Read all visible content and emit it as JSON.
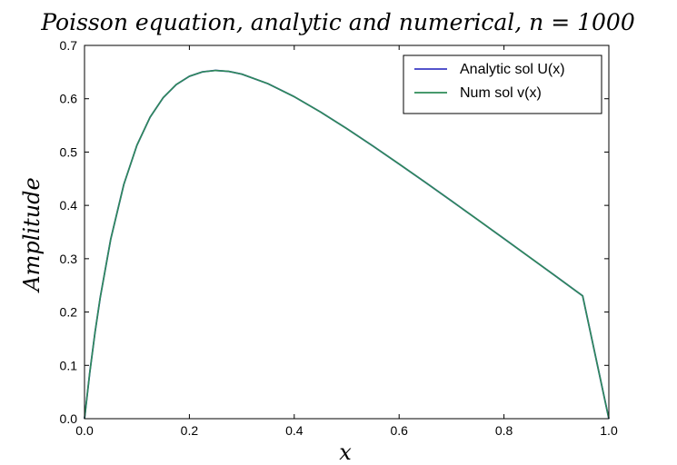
{
  "chart_data": {
    "type": "line",
    "title": "Poisson equation, analytic and numerical,  n = 1000",
    "xlabel": "x",
    "ylabel": "Amplitude",
    "xlim": [
      0.0,
      1.0
    ],
    "ylim": [
      0.0,
      0.7
    ],
    "xticks": [
      "0.0",
      "0.2",
      "0.4",
      "0.6",
      "0.8",
      "1.0"
    ],
    "yticks": [
      "0.0",
      "0.1",
      "0.2",
      "0.3",
      "0.4",
      "0.5",
      "0.6",
      "0.7"
    ],
    "grid": false,
    "legend_position": "top-right",
    "x": [
      0.0,
      0.01,
      0.02,
      0.03,
      0.05,
      0.075,
      0.1,
      0.125,
      0.15,
      0.175,
      0.2,
      0.225,
      0.25,
      0.275,
      0.3,
      0.35,
      0.4,
      0.45,
      0.5,
      0.55,
      0.6,
      0.65,
      0.7,
      0.75,
      0.8,
      0.85,
      0.9,
      0.95,
      1.0
    ],
    "series": [
      {
        "name": "Analytic sol U(x)",
        "color": "#3b3bc4",
        "values": [
          0.0,
          0.0862,
          0.1616,
          0.2274,
          0.3367,
          0.4394,
          0.5129,
          0.5653,
          0.6019,
          0.6266,
          0.6421,
          0.6504,
          0.6531,
          0.6513,
          0.6461,
          0.6282,
          0.6038,
          0.5752,
          0.5441,
          0.5114,
          0.4776,
          0.4432,
          0.4083,
          0.3731,
          0.3376,
          0.302,
          0.2663,
          0.2304,
          0.0
        ]
      },
      {
        "name": "Num sol v(x)",
        "color": "#2e8b57",
        "values": [
          0.0,
          0.0862,
          0.1616,
          0.2274,
          0.3367,
          0.4394,
          0.5129,
          0.5653,
          0.6019,
          0.6266,
          0.6421,
          0.6504,
          0.6531,
          0.6513,
          0.6461,
          0.6282,
          0.6038,
          0.5752,
          0.5441,
          0.5114,
          0.4776,
          0.4432,
          0.4083,
          0.3731,
          0.3376,
          0.302,
          0.2663,
          0.2304,
          0.0
        ]
      }
    ]
  }
}
